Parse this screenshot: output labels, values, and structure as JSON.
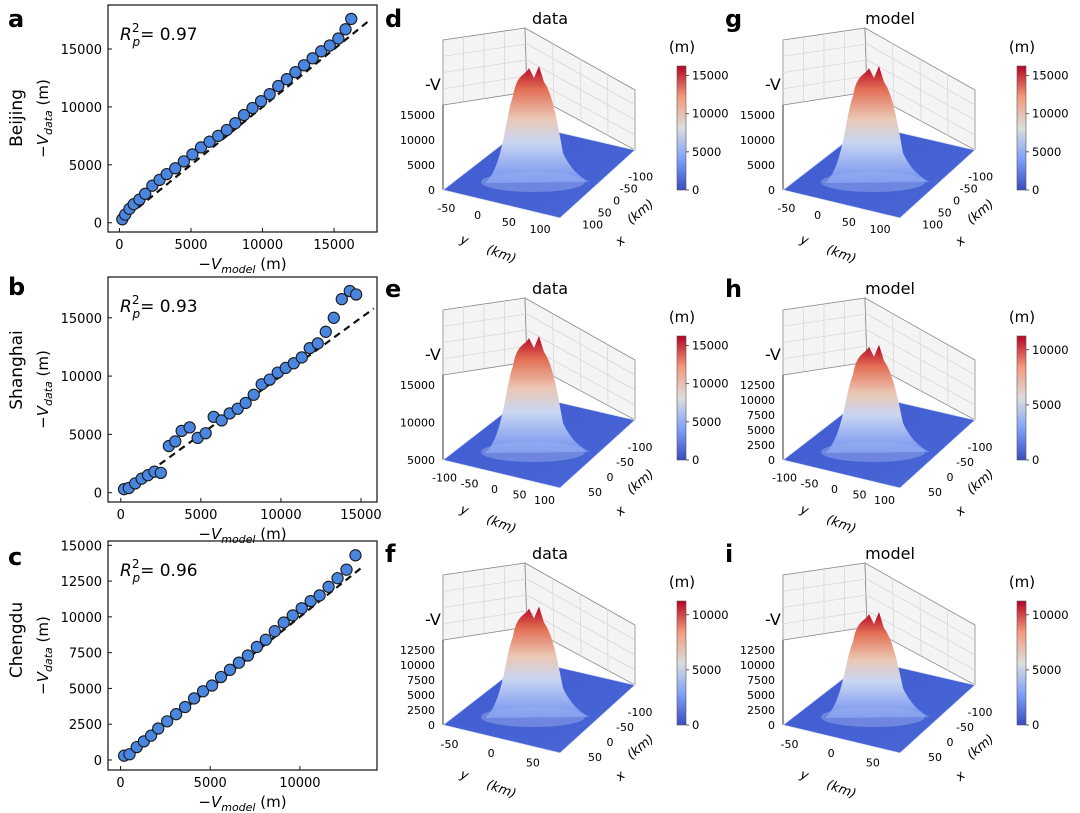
{
  "figure": {
    "scatter_panels": [
      {
        "letter": "a",
        "city": "Beijing",
        "r2_value": "0.97",
        "r2_prefix": "R",
        "r2_sub": "p",
        "r2_sup": "2",
        "r2_eq": "= ",
        "xlabel_main": "−V",
        "xlabel_sub": "model",
        "xlabel_unit": " (m)",
        "ylabel_main": "−V",
        "ylabel_sub": "data",
        "ylabel_unit": " (m)",
        "xticks": [
          "0",
          "5000",
          "10000",
          "15000"
        ],
        "yticks": [
          "0",
          "5000",
          "10000",
          "15000"
        ]
      },
      {
        "letter": "b",
        "city": "Shanghai",
        "r2_value": "0.93",
        "r2_prefix": "R",
        "r2_sub": "p",
        "r2_sup": "2",
        "r2_eq": "= ",
        "xlabel_main": "−V",
        "xlabel_sub": "model",
        "xlabel_unit": " (m)",
        "ylabel_main": "−V",
        "ylabel_sub": "data",
        "ylabel_unit": " (m)",
        "xticks": [
          "0",
          "5000",
          "10000",
          "15000"
        ],
        "yticks": [
          "0",
          "5000",
          "10000",
          "15000"
        ]
      },
      {
        "letter": "c",
        "city": "Chengdu",
        "r2_value": "0.96",
        "r2_prefix": "R",
        "r2_sub": "p",
        "r2_sup": "2",
        "r2_eq": "= ",
        "xlabel_main": "−V",
        "xlabel_sub": "model",
        "xlabel_unit": " (m)",
        "ylabel_main": "−V",
        "ylabel_sub": "data",
        "ylabel_unit": " (m)",
        "xticks": [
          "0",
          "5000",
          "10000"
        ],
        "yticks": [
          "0",
          "2500",
          "5000",
          "7500",
          "10000",
          "12500",
          "15000"
        ]
      }
    ],
    "surface_panels": [
      {
        "letter": "d",
        "title": "data",
        "zlabel": "-V",
        "unit": "(m)",
        "zticks": [
          "0",
          "5000",
          "10000",
          "15000"
        ],
        "yaxis_ticks": [
          "-50",
          "0",
          "50",
          "100"
        ],
        "xaxis_ticks": [
          "-100",
          "-50",
          "0",
          "50",
          "100"
        ],
        "ylabel_letter": "y",
        "xlabel_letter": "x",
        "axis_unit": "(km)",
        "cbar_ticks": [
          "0",
          "5000",
          "10000",
          "15000"
        ]
      },
      {
        "letter": "g",
        "title": "model",
        "zlabel": "-V",
        "unit": "(m)",
        "zticks": [
          "0",
          "5000",
          "10000",
          "15000"
        ],
        "yaxis_ticks": [
          "-50",
          "0",
          "50",
          "100"
        ],
        "xaxis_ticks": [
          "-100",
          "-50",
          "0",
          "50",
          "100"
        ],
        "ylabel_letter": "y",
        "xlabel_letter": "x",
        "axis_unit": "(km)",
        "cbar_ticks": [
          "0",
          "5000",
          "10000",
          "15000"
        ]
      },
      {
        "letter": "e",
        "title": "data",
        "zlabel": "-V",
        "unit": "(m)",
        "zticks": [
          "5000",
          "10000",
          "15000"
        ],
        "yaxis_ticks": [
          "-100",
          "-50",
          "0",
          "50",
          "100"
        ],
        "xaxis_ticks": [
          "-100",
          "-50",
          "0",
          "50"
        ],
        "ylabel_letter": "y",
        "xlabel_letter": "x",
        "axis_unit": "(km)",
        "cbar_ticks": [
          "0",
          "5000",
          "10000",
          "15000"
        ]
      },
      {
        "letter": "h",
        "title": "model",
        "zlabel": "-V",
        "unit": "(m)",
        "zticks": [
          "0",
          "2500",
          "5000",
          "7500",
          "10000",
          "12500"
        ],
        "yaxis_ticks": [
          "-100",
          "-50",
          "0",
          "50",
          "100"
        ],
        "xaxis_ticks": [
          "-100",
          "-50",
          "0",
          "50"
        ],
        "ylabel_letter": "y",
        "xlabel_letter": "x",
        "axis_unit": "(km)",
        "cbar_ticks": [
          "0",
          "5000",
          "10000"
        ]
      },
      {
        "letter": "f",
        "title": "data",
        "zlabel": "-V",
        "unit": "(m)",
        "zticks": [
          "0",
          "2500",
          "5000",
          "7500",
          "10000",
          "12500"
        ],
        "yaxis_ticks": [
          "-50",
          "0",
          "50"
        ],
        "xaxis_ticks": [
          "-100",
          "-50",
          "0",
          "50"
        ],
        "ylabel_letter": "y",
        "xlabel_letter": "x",
        "axis_unit": "(km)",
        "cbar_ticks": [
          "0",
          "5000",
          "10000"
        ]
      },
      {
        "letter": "i",
        "title": "model",
        "zlabel": "-V",
        "unit": "(m)",
        "zticks": [
          "0",
          "2500",
          "5000",
          "7500",
          "10000",
          "12500"
        ],
        "yaxis_ticks": [
          "-50",
          "0",
          "50"
        ],
        "xaxis_ticks": [
          "-100",
          "-50",
          "0",
          "50"
        ],
        "ylabel_letter": "y",
        "xlabel_letter": "x",
        "axis_unit": "(km)",
        "cbar_ticks": [
          "0",
          "5000",
          "10000"
        ]
      }
    ]
  },
  "chart_data": [
    {
      "type": "scatter",
      "panel": "a",
      "xlim": [
        -800,
        18000
      ],
      "ylim": [
        -800,
        18800
      ],
      "points_x": [
        200,
        400,
        700,
        1000,
        1400,
        1800,
        2300,
        2800,
        3300,
        3900,
        4500,
        5100,
        5700,
        6300,
        6900,
        7500,
        8100,
        8700,
        9300,
        9900,
        10500,
        11100,
        11700,
        12300,
        12900,
        13500,
        14100,
        14700,
        15300,
        15800,
        16200
      ],
      "points_y": [
        300,
        700,
        1200,
        1600,
        2000,
        2500,
        3200,
        3700,
        4200,
        4700,
        5300,
        5900,
        6500,
        7000,
        7500,
        8000,
        8600,
        9300,
        9900,
        10500,
        11100,
        11800,
        12400,
        13000,
        13600,
        14200,
        14800,
        15300,
        15900,
        16700,
        17600
      ],
      "reference_line": {
        "x": [
          0,
          17500
        ],
        "y": [
          0,
          17500
        ]
      },
      "grid": false
    },
    {
      "type": "scatter",
      "panel": "b",
      "xlim": [
        -800,
        16000
      ],
      "ylim": [
        -800,
        18500
      ],
      "points_x": [
        200,
        500,
        900,
        1300,
        1700,
        2100,
        2500,
        3000,
        3400,
        3800,
        4300,
        4800,
        5300,
        5800,
        6300,
        6800,
        7300,
        7800,
        8300,
        8800,
        9300,
        9800,
        10300,
        10800,
        11300,
        11800,
        12300,
        12800,
        13300,
        13800,
        14300,
        14700
      ],
      "points_y": [
        300,
        400,
        800,
        1200,
        1500,
        1800,
        1700,
        4000,
        4400,
        5300,
        5600,
        4700,
        5100,
        6500,
        6200,
        6800,
        7200,
        7700,
        8400,
        9300,
        9700,
        10300,
        10700,
        11100,
        11600,
        12400,
        12800,
        13800,
        15000,
        16600,
        17300,
        17000
      ],
      "reference_line": {
        "x": [
          0,
          15800
        ],
        "y": [
          0,
          15800
        ]
      },
      "grid": false
    },
    {
      "type": "scatter",
      "panel": "c",
      "xlim": [
        -700,
        14300
      ],
      "ylim": [
        -700,
        15300
      ],
      "points_x": [
        200,
        500,
        900,
        1300,
        1700,
        2100,
        2600,
        3100,
        3600,
        4100,
        4600,
        5100,
        5600,
        6100,
        6600,
        7100,
        7600,
        8100,
        8600,
        9100,
        9600,
        10100,
        10600,
        11100,
        11600,
        12100,
        12600,
        13100
      ],
      "points_y": [
        300,
        400,
        900,
        1300,
        1700,
        2200,
        2700,
        3200,
        3700,
        4300,
        4800,
        5200,
        5800,
        6300,
        6800,
        7300,
        7900,
        8400,
        9000,
        9600,
        10100,
        10600,
        11100,
        11500,
        12100,
        12700,
        13300,
        14300
      ],
      "reference_line": {
        "x": [
          0,
          13600
        ],
        "y": [
          0,
          13600
        ]
      },
      "grid": false
    }
  ]
}
